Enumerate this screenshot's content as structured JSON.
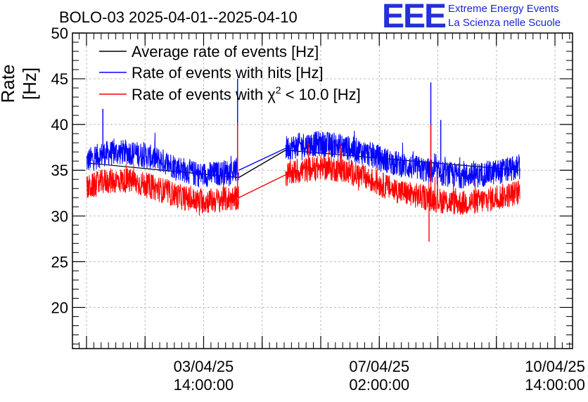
{
  "chart_data": {
    "type": "line",
    "title": "BOLO-03 2025-04-01--2025-04-10",
    "ylabel": "Rate [Hz]",
    "xlabel": "",
    "ylim": [
      15.5,
      50
    ],
    "y_ticks": [
      20,
      25,
      30,
      35,
      40,
      45,
      50
    ],
    "x_tick_labels": [
      {
        "date": "03/04/25",
        "time": "14:00:00"
      },
      {
        "date": "07/04/25",
        "time": "02:00:00"
      },
      {
        "date": "10/04/25",
        "time": "14:00:00"
      }
    ],
    "grid": true,
    "legend_position": "top-left",
    "series": [
      {
        "name": "Average rate of events [Hz]",
        "color": "#000000",
        "segments": [
          {
            "t": [
              0.0,
              2.6
            ],
            "values": [
              35.8,
              34.2
            ]
          },
          {
            "t": [
              3.4,
              7.4
            ],
            "values": [
              37.2,
              35.0
            ]
          }
        ]
      },
      {
        "name": "Rate of events with hits [Hz]",
        "color": "#0000ff",
        "segments": [
          {
            "t": [
              0.0,
              0.3,
              0.7,
              1.0,
              1.3,
              1.6,
              1.9,
              2.2,
              2.6
            ],
            "values": [
              36.0,
              36.8,
              37.0,
              36.6,
              36.0,
              35.2,
              34.5,
              34.6,
              35.0
            ]
          },
          {
            "t": [
              3.4,
              3.7,
              4.0,
              4.3,
              4.6,
              4.9,
              5.2,
              5.5,
              5.8,
              6.1,
              6.4,
              6.7,
              7.0,
              7.4
            ],
            "values": [
              37.4,
              37.8,
              37.9,
              37.7,
              37.2,
              36.6,
              35.9,
              35.4,
              35.0,
              34.6,
              34.4,
              34.5,
              34.8,
              35.3
            ]
          }
        ],
        "spikes": [
          {
            "t": 0.28,
            "value": 41.7
          },
          {
            "t": 2.58,
            "value": 45.0
          },
          {
            "t": 5.88,
            "value": 44.6
          },
          {
            "t": 6.05,
            "value": 40.5
          }
        ]
      },
      {
        "name": "Rate of events with χ² < 10.0 [Hz]",
        "color": "#ff0000",
        "segments": [
          {
            "t": [
              0.0,
              0.3,
              0.7,
              1.0,
              1.3,
              1.6,
              1.9,
              2.2,
              2.6
            ],
            "values": [
              33.0,
              33.8,
              33.9,
              33.4,
              32.8,
              32.1,
              31.6,
              31.7,
              32.0
            ]
          },
          {
            "t": [
              3.4,
              3.7,
              4.0,
              4.3,
              4.6,
              4.9,
              5.2,
              5.5,
              5.8,
              6.1,
              6.4,
              6.7,
              7.0,
              7.4
            ],
            "values": [
              34.5,
              35.0,
              35.3,
              35.1,
              34.6,
              33.8,
              33.0,
              32.4,
              32.0,
              31.6,
              31.4,
              31.6,
              32.0,
              32.6
            ]
          }
        ],
        "spikes": [
          {
            "t": 2.58,
            "value": 40.2
          },
          {
            "t": 5.85,
            "value": 27.2
          },
          {
            "t": 5.88,
            "value": 40.0
          }
        ]
      }
    ],
    "noise_band_hz": 1.4
  },
  "legend": {
    "avg_label": "Average rate of events [Hz]",
    "hits_label": "Rate of events with hits [Hz]",
    "chi_prefix": "Rate of events with ",
    "chi_symbol": "χ",
    "chi_sup": "2",
    "chi_suffix": " < 10.0 [Hz]"
  },
  "header": {
    "logo": "EEE",
    "line1": "Extreme Energy Events",
    "line2": "La Scienza nelle Scuole"
  },
  "colors": {
    "avg": "#000000",
    "hits": "#0000ff",
    "chi": "#ff0000",
    "logo": "#2431d8",
    "grid": "#bdbdbd"
  }
}
